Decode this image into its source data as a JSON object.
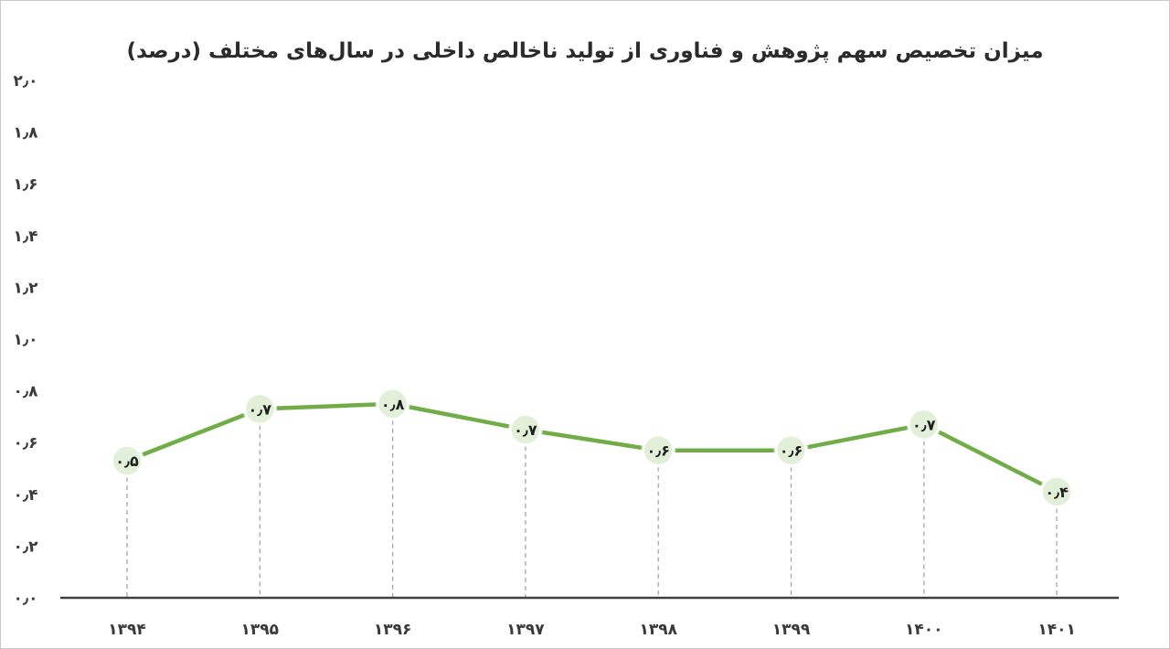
{
  "chart_data": {
    "type": "line",
    "title": "میزان تخصیص سهم پژوهش و فناوری از تولید ناخالص داخلی در سال‌های مختلف (درصد)",
    "categories": [
      "۱۳۹۴",
      "۱۳۹۵",
      "۱۳۹۶",
      "۱۳۹۷",
      "۱۳۹۸",
      "۱۳۹۹",
      "۱۴۰۰",
      "۱۴۰۱"
    ],
    "values": [
      0.53,
      0.73,
      0.75,
      0.65,
      0.57,
      0.57,
      0.67,
      0.41
    ],
    "data_labels": [
      "۰٫۵",
      "۰٫۷",
      "۰٫۸",
      "۰٫۷",
      "۰٫۶",
      "۰٫۶",
      "۰٫۷",
      "۰٫۴"
    ],
    "y_ticks": [
      0,
      0.2,
      0.4,
      0.6,
      0.8,
      1.0,
      1.2,
      1.4,
      1.6,
      1.8,
      2.0
    ],
    "y_tick_labels": [
      "۰٫۰",
      "۰٫۲",
      "۰٫۴",
      "۰٫۶",
      "۰٫۸",
      "۱٫۰",
      "۱٫۲",
      "۱٫۴",
      "۱٫۶",
      "۱٫۸",
      "۲٫۰"
    ],
    "ylim": [
      0,
      2.0
    ],
    "xlabel": "",
    "ylabel": "",
    "grid": false,
    "drop_lines": true,
    "legend": "none",
    "line_color": "#70ad47",
    "marker_fill": "#e2efd9",
    "axis_color": "#404040",
    "drop_line_color": "#a6a6a6"
  }
}
